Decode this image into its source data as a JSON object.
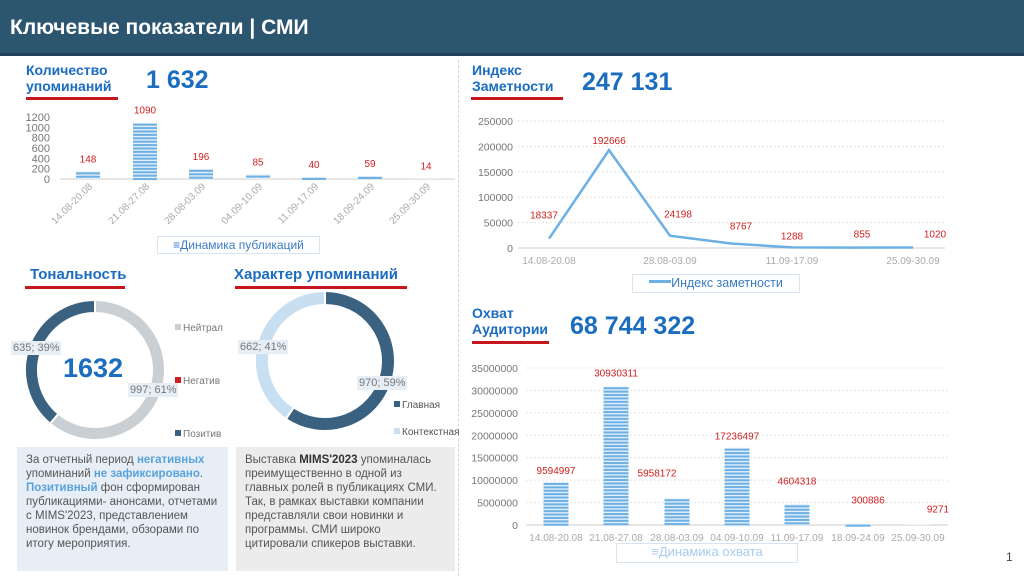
{
  "header": {
    "title": "Ключевые показатели | СМИ"
  },
  "colors": {
    "accent": "#1a6dbf",
    "underline": "#c4161c",
    "bar": "#6cb0e4",
    "dark": "#3b6180",
    "neutral": "#c9cfd3",
    "light": "#c8dff2",
    "label": "#d02020"
  },
  "mentions": {
    "title1": "Количество",
    "title2": "упоминаний",
    "total": "1 632"
  },
  "index": {
    "title1": "Индекс",
    "title2": "Заметности",
    "total": "247 131"
  },
  "reach": {
    "title1": "Охват",
    "title2": "Аудитории",
    "total": "68 744 322"
  },
  "tone": {
    "title": "Тональность",
    "center": "1632",
    "labels": {
      "pos": "635; 39%",
      "neu": "997; 61%"
    },
    "legend": [
      "Нейтрал",
      "Негатив",
      "Позитив"
    ]
  },
  "character": {
    "title": "Характер упоминаний",
    "labels": {
      "main": "970; 59%",
      "ctx": "662; 41%"
    },
    "legend": [
      "Главная",
      "Контекстная"
    ]
  },
  "notes": {
    "left": {
      "p1": "За отчетный период ",
      "h1": "негативных",
      "p2": " упоминаний ",
      "h2": "не зафиксировано",
      "p3": ". ",
      "h3": "Позитивный",
      "p4": " фон сформирован публикациями- анонсами, отчетами с MIMS'2023, представлением новинок брендами, обзорами по итогу мероприятия."
    },
    "right": {
      "p1": "Выставка ",
      "b1": "MIMS'2023",
      "p2": " упоминалась преимущественно в одной из главных ролей в публикациях СМИ. Так, в рамках выставки компании представляли свои новинки и программы. СМИ широко цитировали спикеров выставки."
    }
  },
  "page_number": "1",
  "chart_data": [
    {
      "type": "bar",
      "id": "pub",
      "categories": [
        "14.08-20.08",
        "21.08-27.08",
        "28.08-03.09",
        "04.09-10.09",
        "11.09-17.09",
        "18.09-24.09",
        "25.09-30.09"
      ],
      "values": [
        148,
        1090,
        196,
        85,
        40,
        59,
        14
      ],
      "yticks": [
        0,
        200,
        400,
        600,
        800,
        1000,
        1200
      ],
      "ylim": [
        0,
        1200
      ],
      "legend": "Динамика публикаций",
      "title": "",
      "xlabel": "",
      "ylabel": ""
    },
    {
      "type": "line",
      "id": "idx",
      "categories": [
        "14.08-20.08",
        "21.08-27.08",
        "28.08-03.09",
        "04.09-10.09",
        "11.09-17.09",
        "18.09-24.09",
        "25.09-30.09"
      ],
      "xticklabels": [
        "14.08-20.08",
        "",
        "28.08-03.09",
        "",
        "11.09-17.09",
        "",
        "25.09-30.09"
      ],
      "values": [
        18337,
        192666,
        24198,
        8767,
        1288,
        855,
        1020
      ],
      "yticks": [
        0,
        50000,
        100000,
        150000,
        200000,
        250000
      ],
      "ylim": [
        0,
        250000
      ],
      "grid": true,
      "legend": "Индекс заметности"
    },
    {
      "type": "bar",
      "id": "reach",
      "categories": [
        "14.08-20.08",
        "21.08-27.08",
        "28.08-03.09",
        "04.09-10.09",
        "11.09-17.09",
        "18.09-24.09",
        "25.09-30.09"
      ],
      "values": [
        9594997,
        30930311,
        5958172,
        17236497,
        4604318,
        300886,
        9271
      ],
      "yticks": [
        0,
        5000000,
        10000000,
        15000000,
        20000000,
        25000000,
        30000000,
        35000000
      ],
      "ylim": [
        0,
        35000000
      ],
      "grid": true,
      "legend": "Динамика охвата"
    }
  ]
}
